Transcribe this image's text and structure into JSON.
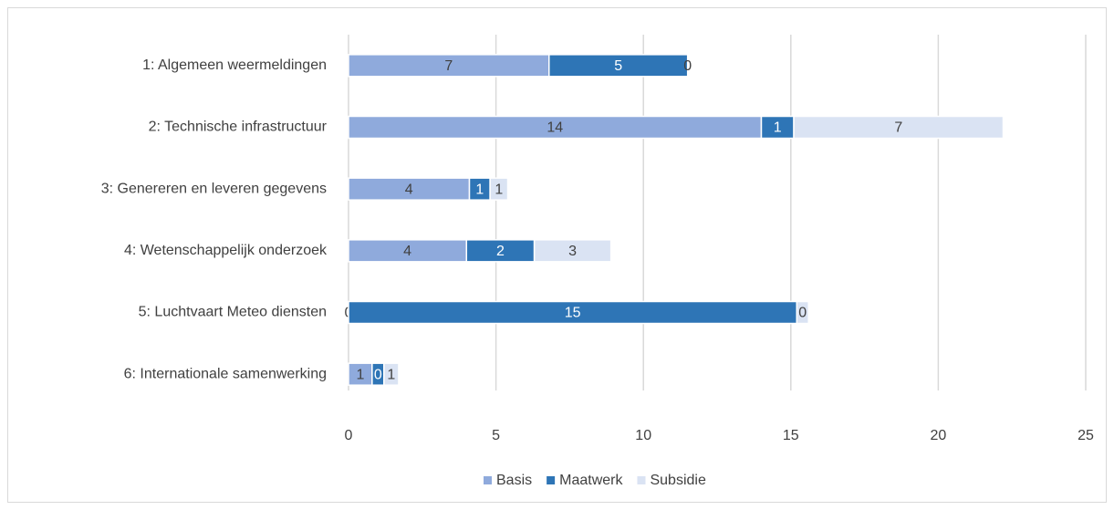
{
  "chart_data": {
    "type": "stacked-bar-horizontal",
    "categories": [
      "1: Algemeen weermeldingen",
      "2: Technische infrastructuur",
      "3: Genereren en leveren gegevens",
      "4: Wetenschappelijk onderzoek",
      "5: Luchtvaart Meteo diensten",
      "6: Internationale samenwerking"
    ],
    "series": [
      {
        "name": "Basis",
        "color": "#8faadc",
        "label_color": "#404040",
        "values": [
          6.8,
          14.0,
          4.1,
          4.0,
          0,
          0.8
        ],
        "value_labels": [
          "7",
          "14",
          "4",
          "4",
          "0",
          "1"
        ]
      },
      {
        "name": "Maatwerk",
        "color": "#2e75b6",
        "label_color": "#ffffff",
        "values": [
          4.7,
          1.1,
          0.7,
          2.3,
          15.2,
          0.4
        ],
        "value_labels": [
          "5",
          "1",
          "1",
          "2",
          "15",
          "0"
        ]
      },
      {
        "name": "Subsidie",
        "color": "#dae3f3",
        "label_color": "#404040",
        "values": [
          0,
          7.1,
          0.6,
          2.6,
          0.4,
          0.5
        ],
        "value_labels": [
          "0",
          "7",
          "1",
          "3",
          "0",
          "1"
        ]
      }
    ],
    "xlim": [
      0,
      25
    ],
    "xticks": [
      0,
      5,
      10,
      15,
      20,
      25
    ],
    "grid": true,
    "legend": "bottom"
  }
}
